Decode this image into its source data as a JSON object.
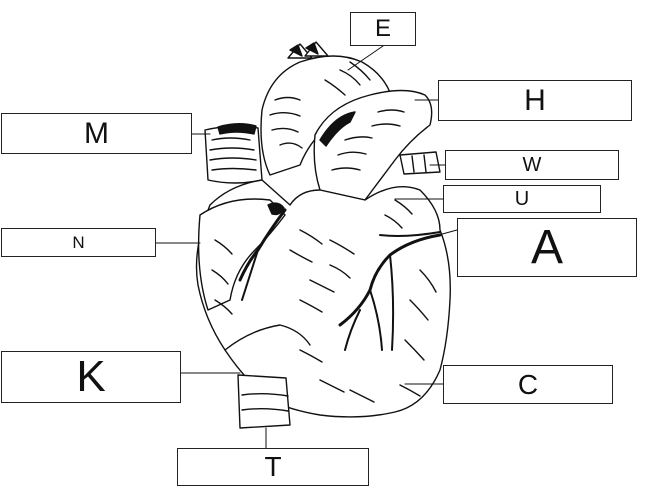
{
  "labels": {
    "e": "E",
    "h": "H",
    "m": "M",
    "w": "W",
    "u": "U",
    "a": "A",
    "n": "N",
    "k": "K",
    "c": "C",
    "t": "T"
  },
  "colors": {
    "outline": "#111111",
    "background": "#ffffff"
  }
}
